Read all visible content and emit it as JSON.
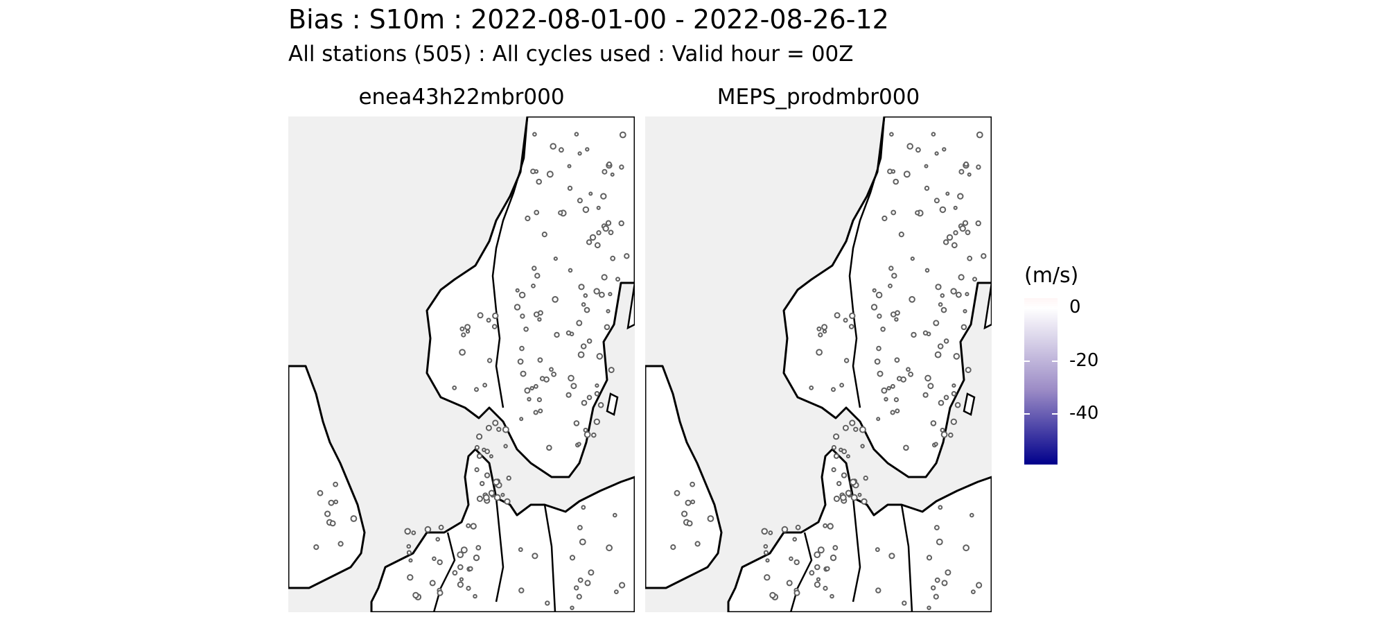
{
  "title": "Bias : S10m : 2022-08-01-00 - 2022-08-26-12",
  "subtitle": "All stations (505) : All cycles used : Valid hour = 00Z",
  "panels": [
    {
      "label": "enea43h22mbr000"
    },
    {
      "label": "MEPS_prodmbr000"
    }
  ],
  "legend": {
    "title": "(m/s)",
    "ticks": [
      "0",
      "-20",
      "-40"
    ],
    "colors": {
      "high": "#fff5f5",
      "mid": "#ffffff",
      "low": "#00008b"
    }
  },
  "colors": {
    "sea": "#f0f0f0",
    "land": "#ffffff",
    "coast": "#000000",
    "station_edge": "#606060"
  }
}
